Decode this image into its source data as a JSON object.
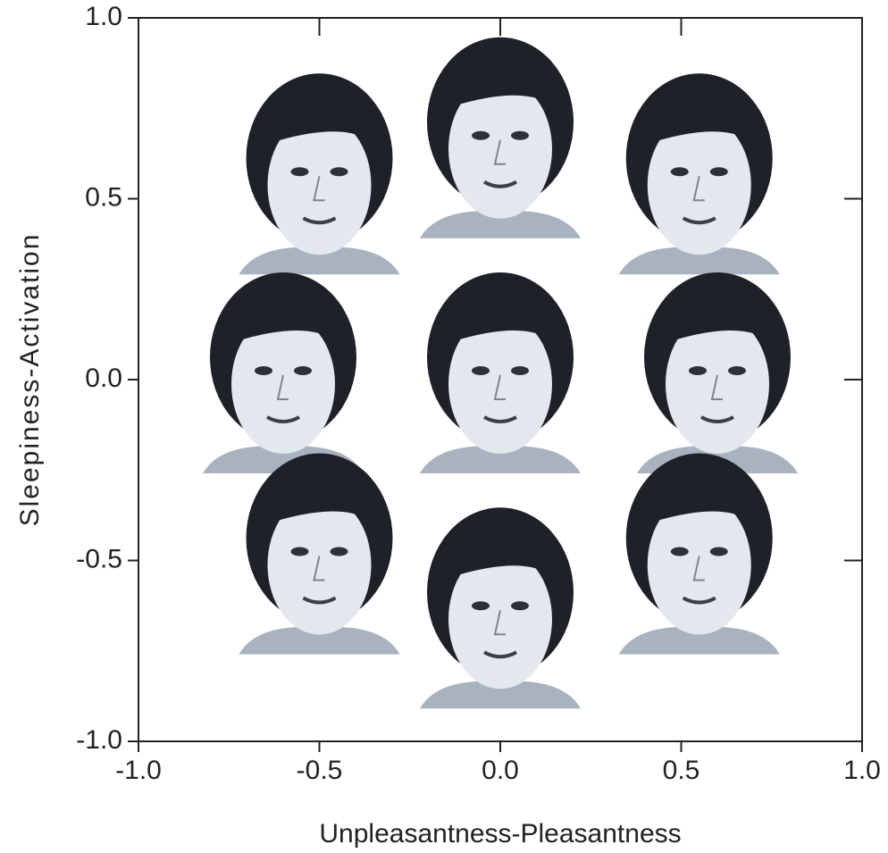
{
  "chart_data": {
    "type": "scatter",
    "x_label": "Unpleasantness-Pleasantness",
    "y_label": "Sleepiness-Activation",
    "x": [
      -0.5,
      0.0,
      0.55,
      -0.6,
      0.0,
      0.6,
      -0.5,
      0.0,
      0.55
    ],
    "values": [
      0.55,
      0.65,
      0.55,
      0.0,
      0.0,
      0.0,
      -0.5,
      -0.65,
      -0.5
    ],
    "xlim": [
      -1,
      1
    ],
    "ylim": [
      -1,
      1
    ],
    "xticks": [
      {
        "value": -1,
        "label": "-1.0"
      },
      -0.5,
      {
        "value": 0,
        "label": "0.0"
      },
      0.5,
      {
        "value": 1,
        "label": "1.0"
      }
    ],
    "yticks": [
      {
        "value": -1,
        "label": "-1.0"
      },
      -0.5,
      {
        "value": 0,
        "label": "0.0"
      },
      0.5,
      {
        "value": 1,
        "label": "1.0"
      }
    ]
  }
}
